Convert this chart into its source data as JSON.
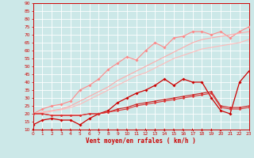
{
  "xlabel": "Vent moyen/en rafales ( km/h )",
  "background_color": "#cce8e8",
  "grid_color": "#b0d8d8",
  "x_values": [
    0,
    1,
    2,
    3,
    4,
    5,
    6,
    7,
    8,
    9,
    10,
    11,
    12,
    13,
    14,
    15,
    16,
    17,
    18,
    19,
    20,
    21,
    22,
    23
  ],
  "ylim": [
    10,
    90
  ],
  "xlim": [
    0,
    23
  ],
  "yticks": [
    10,
    15,
    20,
    25,
    30,
    35,
    40,
    45,
    50,
    55,
    60,
    65,
    70,
    75,
    80,
    85,
    90
  ],
  "series": [
    {
      "color": "#ff8888",
      "linewidth": 0.8,
      "marker": "D",
      "markersize": 1.8,
      "y": [
        20,
        23,
        25,
        26,
        28,
        35,
        38,
        42,
        48,
        52,
        56,
        54,
        60,
        65,
        62,
        68,
        69,
        72,
        72,
        70,
        72,
        68,
        72,
        75
      ]
    },
    {
      "color": "#ffaaaa",
      "linewidth": 0.8,
      "marker": null,
      "markersize": 0,
      "y": [
        20,
        21,
        22,
        23,
        25,
        28,
        31,
        34,
        37,
        41,
        44,
        47,
        50,
        53,
        56,
        59,
        62,
        65,
        67,
        68,
        69,
        70,
        71,
        72
      ]
    },
    {
      "color": "#ffbbbb",
      "linewidth": 0.8,
      "marker": null,
      "markersize": 0,
      "y": [
        20,
        20.5,
        21.5,
        22.5,
        24,
        26,
        29,
        32,
        35,
        38,
        41,
        44,
        46,
        49,
        52,
        55,
        57,
        59,
        61,
        62,
        63,
        64,
        65,
        67
      ]
    },
    {
      "color": "#cc0000",
      "linewidth": 0.9,
      "marker": "D",
      "markersize": 1.8,
      "y": [
        13,
        16,
        17,
        16,
        16,
        13,
        17,
        20,
        22,
        27,
        30,
        33,
        35,
        38,
        42,
        38,
        42,
        40,
        40,
        30,
        22,
        20,
        40,
        47
      ]
    },
    {
      "color": "#cc2222",
      "linewidth": 0.8,
      "marker": "D",
      "markersize": 1.5,
      "y": [
        20,
        20,
        19,
        19,
        19,
        19,
        20,
        20,
        21,
        23,
        24,
        26,
        27,
        28,
        29,
        30,
        31,
        32,
        33,
        34,
        25,
        24,
        24,
        25
      ]
    },
    {
      "color": "#dd3333",
      "linewidth": 0.8,
      "marker": "D",
      "markersize": 1.5,
      "y": [
        20,
        20,
        19,
        19,
        19,
        19,
        20,
        20,
        21,
        22,
        23,
        25,
        26,
        27,
        28,
        29,
        30,
        31,
        32,
        33,
        24,
        23,
        23,
        24
      ]
    }
  ],
  "tick_color": "#cc0000",
  "spine_color": "#cc0000",
  "xlabel_fontsize": 5.5,
  "tick_fontsize": 4.2
}
